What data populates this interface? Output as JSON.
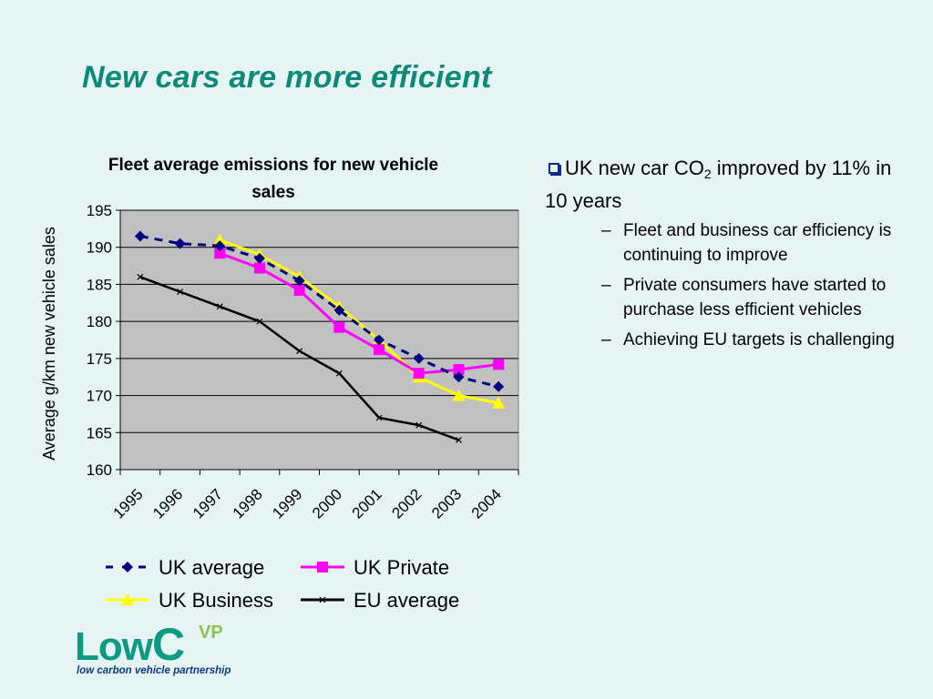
{
  "slide": {
    "title": "New cars are more efficient"
  },
  "bullets": {
    "main_pre": "UK new car CO",
    "main_sub": "2",
    "main_post": " improved by 11% in 10 years",
    "sub_items": [
      "Fleet and business car efficiency is continuing to improve",
      "Private consumers have started to purchase less efficient vehicles",
      "Achieving EU targets is challenging"
    ],
    "dash": "–"
  },
  "logo": {
    "main_a": "Low",
    "main_b": "C",
    "superscript": "VP",
    "tagline": "low carbon vehicle partnership"
  },
  "chart_data": {
    "type": "line",
    "title": "Fleet average emissions for new vehicle sales",
    "ylabel": "Average g/km new vehicle sales",
    "xlabel": "",
    "categories": [
      "1995",
      "1996",
      "1997",
      "1998",
      "1999",
      "2000",
      "2001",
      "2002",
      "2003",
      "2004"
    ],
    "ylim": [
      160,
      195
    ],
    "yticks": [
      160,
      165,
      170,
      175,
      180,
      185,
      190,
      195
    ],
    "grid": true,
    "legend_position": "bottom",
    "series": [
      {
        "name": "UK average",
        "color": "#000080",
        "marker": "diamond",
        "dashed": true,
        "values": [
          191.5,
          190.5,
          190.2,
          188.5,
          185.5,
          181.5,
          177.5,
          175.0,
          172.5,
          171.2
        ]
      },
      {
        "name": "UK Private",
        "color": "#ff00ff",
        "marker": "square",
        "dashed": false,
        "values": [
          null,
          null,
          189.2,
          187.2,
          184.2,
          179.2,
          176.2,
          173.0,
          173.5,
          174.2
        ]
      },
      {
        "name": "UK Business",
        "color": "#ffff00",
        "marker": "triangle",
        "dashed": false,
        "values": [
          null,
          null,
          191.0,
          189.0,
          186.0,
          182.0,
          177.5,
          172.5,
          170.0,
          169.0
        ]
      },
      {
        "name": "EU average",
        "color": "#000000",
        "marker": "x",
        "dashed": false,
        "values": [
          186.0,
          184.0,
          182.0,
          180.0,
          176.0,
          173.0,
          167.0,
          166.0,
          164.0,
          null
        ]
      }
    ]
  }
}
